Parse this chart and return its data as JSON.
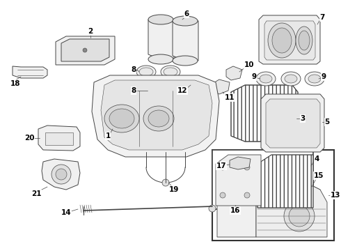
{
  "background_color": "#ffffff",
  "line_color": "#444444",
  "label_color": "#000000",
  "fig_width": 4.9,
  "fig_height": 3.6,
  "dpi": 100,
  "label_fontsize": 7.5,
  "lw": 0.7
}
